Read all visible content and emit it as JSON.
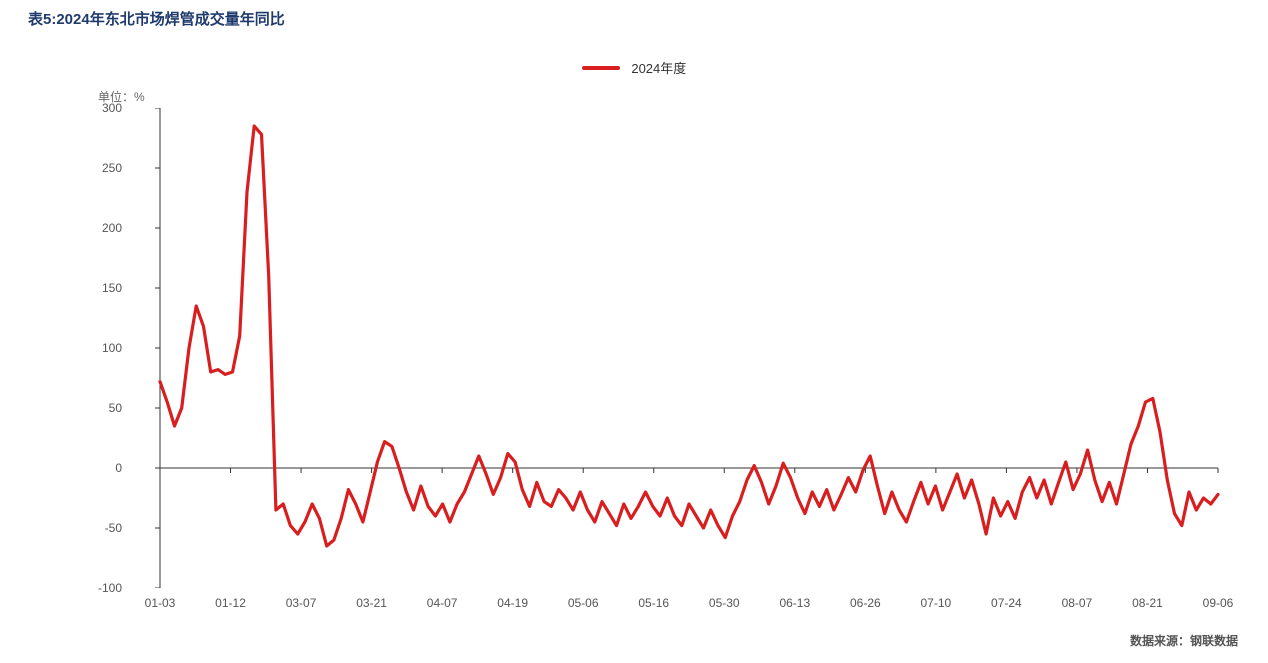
{
  "title": "表5:2024年东北市场焊管成交量年同比",
  "legend_label": "2024年度",
  "unit_label": "单位：%",
  "source_label": "数据来源：钢联数据",
  "chart": {
    "type": "line",
    "line_color": "#d81e1e",
    "line_width": 3.2,
    "background_color": "#ffffff",
    "axis_color": "#333333",
    "tick_font_color": "#555555",
    "tick_fontsize": 12,
    "title_color": "#1f3a6d",
    "title_fontsize": 15,
    "ylim": [
      -100,
      300
    ],
    "yticks": [
      -100,
      -50,
      0,
      50,
      100,
      150,
      200,
      250,
      300
    ],
    "x_labels": [
      "01-03",
      "01-12",
      "03-07",
      "03-21",
      "04-07",
      "04-19",
      "05-06",
      "05-16",
      "05-30",
      "06-13",
      "06-26",
      "07-10",
      "07-24",
      "08-07",
      "08-21",
      "09-06"
    ],
    "values": [
      72,
      55,
      35,
      50,
      100,
      135,
      118,
      80,
      82,
      78,
      80,
      110,
      230,
      285,
      278,
      160,
      -35,
      -30,
      -48,
      -55,
      -45,
      -30,
      -42,
      -65,
      -60,
      -42,
      -18,
      -30,
      -45,
      -20,
      5,
      22,
      18,
      0,
      -20,
      -35,
      -15,
      -32,
      -40,
      -30,
      -45,
      -30,
      -20,
      -5,
      10,
      -5,
      -22,
      -8,
      12,
      5,
      -18,
      -32,
      -12,
      -28,
      -32,
      -18,
      -25,
      -35,
      -20,
      -35,
      -45,
      -28,
      -38,
      -48,
      -30,
      -42,
      -32,
      -20,
      -32,
      -40,
      -25,
      -40,
      -48,
      -30,
      -40,
      -50,
      -35,
      -48,
      -58,
      -40,
      -28,
      -10,
      2,
      -12,
      -30,
      -15,
      4,
      -8,
      -25,
      -38,
      -20,
      -32,
      -18,
      -35,
      -22,
      -8,
      -20,
      -2,
      10,
      -15,
      -38,
      -20,
      -35,
      -45,
      -28,
      -12,
      -30,
      -15,
      -35,
      -20,
      -5,
      -25,
      -10,
      -30,
      -55,
      -25,
      -40,
      -28,
      -42,
      -20,
      -8,
      -25,
      -10,
      -30,
      -12,
      5,
      -18,
      -5,
      15,
      -10,
      -28,
      -12,
      -30,
      -5,
      20,
      35,
      55,
      58,
      30,
      -10,
      -38,
      -48,
      -20,
      -35,
      -25,
      -30,
      -22
    ]
  }
}
